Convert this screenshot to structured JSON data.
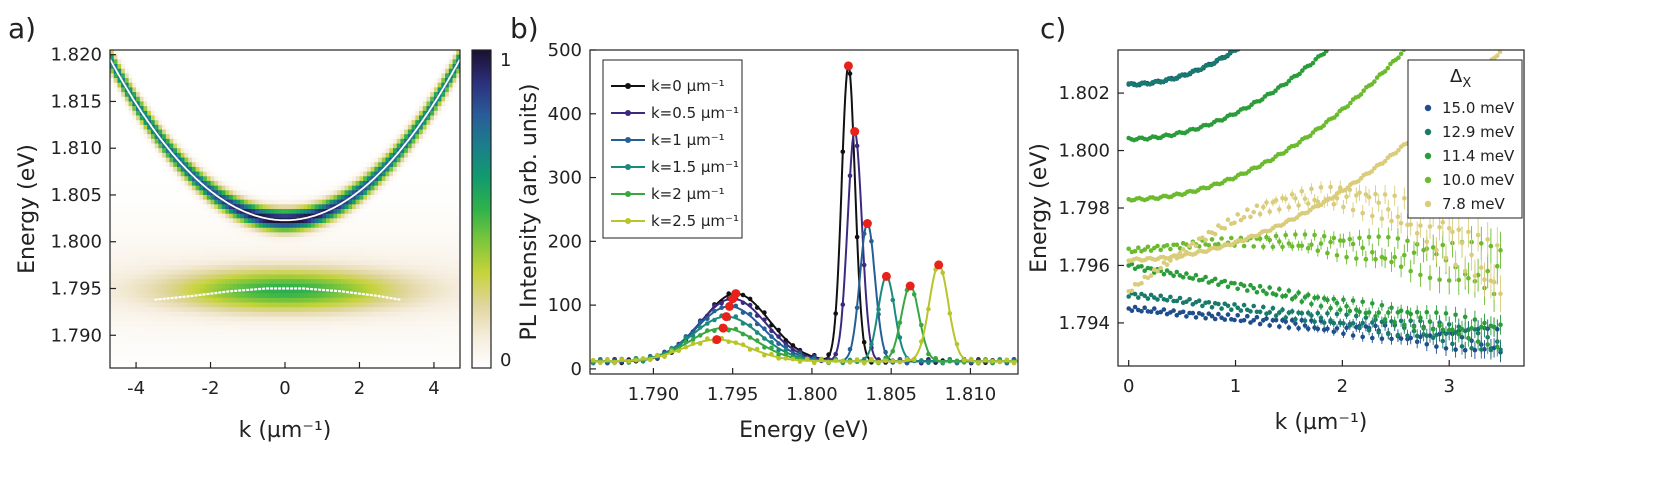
{
  "panels": {
    "a": "a)",
    "b": "b)",
    "c": "c)"
  },
  "chart_data": [
    {
      "type": "heatmap",
      "panel": "a)",
      "xlabel": "k (µm⁻¹)",
      "ylabel": "Energy (eV)",
      "xlim": [
        -4.7,
        4.7
      ],
      "ylim": [
        1.7865,
        1.8205
      ],
      "xticks": [
        "-4",
        "-2",
        "0",
        "2",
        "4"
      ],
      "xtick_values": [
        -4,
        -2,
        0,
        2,
        4
      ],
      "yticks": [
        "1.790",
        "1.795",
        "1.800",
        "1.805",
        "1.810",
        "1.815",
        "1.820"
      ],
      "ytick_values": [
        1.79,
        1.795,
        1.8,
        1.805,
        1.81,
        1.815,
        1.82
      ],
      "colorbar": {
        "ticks": [
          "0",
          "1"
        ],
        "tick_values": [
          0,
          1
        ],
        "colors": [
          "#ffffff",
          "#f5ecdc",
          "#dfd59c",
          "#c6d33a",
          "#7cc63b",
          "#2fb24a",
          "#119a6e",
          "#1c7d8c",
          "#2a5a9a",
          "#2c2f7a",
          "#1a1030"
        ]
      },
      "upper_branch": {
        "min_energy": 1.8023,
        "curvature": 0.00078
      },
      "lower_branch": {
        "k": [
          -3.5,
          -2.5,
          -1.5,
          -0.5,
          0,
          0.5,
          1.5,
          2.5,
          3.1
        ],
        "energy": [
          1.7938,
          1.7942,
          1.7947,
          1.795,
          1.795,
          1.795,
          1.7947,
          1.7942,
          1.7938
        ]
      }
    },
    {
      "type": "line",
      "panel": "b)",
      "xlabel": "Energy (eV)",
      "ylabel": "PL Intensity (arb. units)",
      "xlim": [
        1.786,
        1.813
      ],
      "ylim": [
        -8,
        500
      ],
      "xticks": [
        "1.790",
        "1.795",
        "1.800",
        "1.805",
        "1.810"
      ],
      "xtick_values": [
        1.79,
        1.795,
        1.8,
        1.805,
        1.81
      ],
      "yticks": [
        "0",
        "100",
        "200",
        "300",
        "400",
        "500"
      ],
      "ytick_values": [
        0,
        100,
        200,
        300,
        400,
        500
      ],
      "legend_position": "top-left",
      "series": [
        {
          "name": "k=0 µm⁻¹",
          "color": "#111111",
          "peak1_x": 1.7952,
          "peak1_y": 118,
          "peak2_x": 1.8023,
          "peak2_y": 475,
          "width1": 0.0021,
          "width2": 0.00042
        },
        {
          "name": "k=0.5 µm⁻¹",
          "color": "#3d2a80",
          "peak1_x": 1.795,
          "peak1_y": 110,
          "peak2_x": 1.8027,
          "peak2_y": 372,
          "width1": 0.0021,
          "width2": 0.00045
        },
        {
          "name": "k=1 µm⁻¹",
          "color": "#245f95",
          "peak1_x": 1.7948,
          "peak1_y": 98,
          "peak2_x": 1.8035,
          "peak2_y": 228,
          "width1": 0.0021,
          "width2": 0.00048
        },
        {
          "name": "k=1.5 µm⁻¹",
          "color": "#1a8a7c",
          "peak1_x": 1.7946,
          "peak1_y": 82,
          "peak2_x": 1.8047,
          "peak2_y": 145,
          "width1": 0.0021,
          "width2": 0.00052
        },
        {
          "name": "k=2 µm⁻¹",
          "color": "#37a742",
          "peak1_x": 1.7944,
          "peak1_y": 64,
          "peak2_x": 1.8062,
          "peak2_y": 130,
          "width1": 0.0021,
          "width2": 0.00056
        },
        {
          "name": "k=2.5 µm⁻¹",
          "color": "#b8c52a",
          "peak1_x": 1.794,
          "peak1_y": 46,
          "peak2_x": 1.808,
          "peak2_y": 163,
          "width1": 0.0021,
          "width2": 0.0006
        }
      ]
    },
    {
      "type": "scatter",
      "panel": "c)",
      "xlabel": "k (µm⁻¹)",
      "ylabel": "Energy (eV)",
      "xlim": [
        -0.1,
        3.7
      ],
      "ylim": [
        1.7925,
        1.8035
      ],
      "xticks": [
        "0",
        "1",
        "2",
        "3"
      ],
      "xtick_values": [
        0,
        1,
        2,
        3
      ],
      "yticks": [
        "1.794",
        "1.796",
        "1.798",
        "1.800",
        "1.802"
      ],
      "ytick_values": [
        1.794,
        1.796,
        1.798,
        1.8,
        1.802
      ],
      "legend_position": "top-right",
      "legend_title": "Δ",
      "legend_title_sub": "X",
      "series": [
        {
          "name": "15.0 meV",
          "color": "#1f4e8c",
          "upper_e0": 1.8023,
          "upper_curv": 0.0012,
          "lower_start": 1.7945,
          "lower_end": 1.7933
        },
        {
          "name": "12.9 meV",
          "color": "#187a6a",
          "upper_e0": 1.8023,
          "upper_curv": 0.0012,
          "lower_start": 1.795,
          "lower_end": 1.7934
        },
        {
          "name": "11.4 meV",
          "color": "#2a9d3a",
          "upper_e0": 1.8004,
          "upper_curv": 0.0009,
          "lower_start": 1.796,
          "lower_end": 1.7936
        },
        {
          "name": "10.0 meV",
          "color": "#6cbb2e",
          "upper_e0": 1.7983,
          "upper_curv": 0.00078,
          "lower_start": 1.7965,
          "lower_end": 1.7945
        },
        {
          "name": "7.8 meV",
          "color": "#d9cc7a",
          "upper_e0": 1.7962,
          "upper_curv": 0.0006,
          "lower_start": 1.7951,
          "lower_end": 1.7955
        }
      ]
    }
  ]
}
